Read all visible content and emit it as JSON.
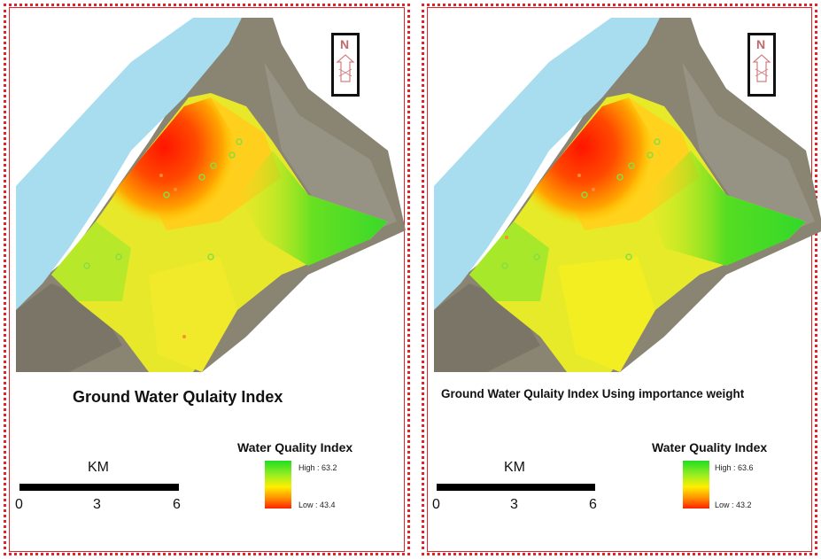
{
  "panels": [
    {
      "title": "Ground Water Qulaity Index",
      "legend": {
        "title": "Water Quality Index",
        "high": "High : 63.2",
        "low": "Low : 43.4"
      },
      "scale": {
        "unit": "KM",
        "ticks": [
          "0",
          "3",
          "6"
        ]
      },
      "north": "N"
    },
    {
      "title": "Ground Water Qulaity Index Using importance weight",
      "legend": {
        "title": "Water Quality Index",
        "high": "High : 63.6",
        "low": "Low : 43.2"
      },
      "scale": {
        "unit": "KM",
        "ticks": [
          "0",
          "3",
          "6"
        ]
      },
      "north": "N"
    }
  ],
  "colors": {
    "sea": "#a8dcef",
    "frame": "#e0242a",
    "high": "#22dd22",
    "low": "#ff2200",
    "land": "#8a8472"
  }
}
